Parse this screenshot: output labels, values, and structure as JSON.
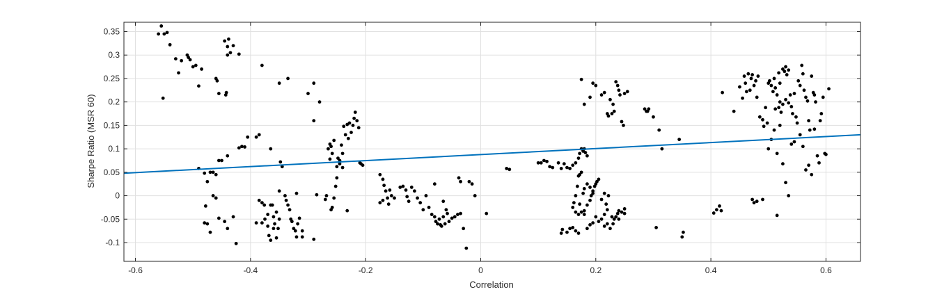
{
  "chart_data": {
    "type": "scatter",
    "title": "",
    "xlabel": "Correlation",
    "ylabel": "Sharpe Ratio (MSR 60)",
    "xlim": [
      -0.62,
      0.66
    ],
    "ylim": [
      -0.14,
      0.37
    ],
    "xticks": [
      -0.6,
      -0.4,
      -0.2,
      0,
      0.2,
      0.4,
      0.6
    ],
    "xtick_labels": [
      "-0.6",
      "-0.4",
      "-0.2",
      "0",
      "0.2",
      "0.4",
      "0.6"
    ],
    "yticks": [
      -0.1,
      -0.05,
      0,
      0.05,
      0.1,
      0.15,
      0.2,
      0.25,
      0.3,
      0.35
    ],
    "ytick_labels": [
      "-0.1",
      "-0.05",
      "0",
      "0.05",
      "0.1",
      "0.15",
      "0.2",
      "0.25",
      "0.3",
      "0.35"
    ],
    "grid": true,
    "colors": {
      "points": "#000000",
      "fit_line": "#0072BD",
      "grid": "#e0e0e0",
      "axes": "#262626"
    },
    "fit_line": {
      "x": [
        -0.62,
        0.66
      ],
      "y": [
        0.048,
        0.13
      ]
    },
    "points": [
      [
        -0.56,
        0.345
      ],
      [
        -0.555,
        0.362
      ],
      [
        -0.55,
        0.345
      ],
      [
        -0.545,
        0.348
      ],
      [
        -0.54,
        0.322
      ],
      [
        -0.552,
        0.208
      ],
      [
        -0.53,
        0.292
      ],
      [
        -0.525,
        0.262
      ],
      [
        -0.52,
        0.288
      ],
      [
        -0.51,
        0.3
      ],
      [
        -0.508,
        0.295
      ],
      [
        -0.505,
        0.29
      ],
      [
        -0.5,
        0.275
      ],
      [
        -0.495,
        0.278
      ],
      [
        -0.49,
        0.234
      ],
      [
        -0.485,
        0.27
      ],
      [
        -0.46,
        0.25
      ],
      [
        -0.458,
        0.245
      ],
      [
        -0.455,
        0.218
      ],
      [
        -0.445,
        0.33
      ],
      [
        -0.44,
        0.318
      ],
      [
        -0.438,
        0.334
      ],
      [
        -0.435,
        0.305
      ],
      [
        -0.44,
        0.3
      ],
      [
        -0.43,
        0.32
      ],
      [
        -0.443,
        0.215
      ],
      [
        -0.442,
        0.22
      ],
      [
        -0.42,
        0.302
      ],
      [
        -0.49,
        0.058
      ],
      [
        -0.48,
        0.048
      ],
      [
        -0.47,
        0.05
      ],
      [
        -0.465,
        0.05
      ],
      [
        -0.46,
        0.045
      ],
      [
        -0.475,
        0.03
      ],
      [
        -0.478,
        -0.022
      ],
      [
        -0.465,
        0.0
      ],
      [
        -0.46,
        -0.005
      ],
      [
        -0.455,
        -0.048
      ],
      [
        -0.48,
        -0.058
      ],
      [
        -0.475,
        -0.06
      ],
      [
        -0.47,
        -0.078
      ],
      [
        -0.455,
        0.075
      ],
      [
        -0.45,
        0.075
      ],
      [
        -0.44,
        0.085
      ],
      [
        -0.445,
        -0.055
      ],
      [
        -0.44,
        -0.07
      ],
      [
        -0.43,
        -0.045
      ],
      [
        -0.425,
        -0.102
      ],
      [
        -0.42,
        0.102
      ],
      [
        -0.415,
        0.105
      ],
      [
        -0.41,
        0.104
      ],
      [
        -0.405,
        0.125
      ],
      [
        -0.39,
        0.125
      ],
      [
        -0.385,
        0.13
      ],
      [
        -0.38,
        0.278
      ],
      [
        -0.365,
        0.1
      ],
      [
        -0.39,
        -0.058
      ],
      [
        -0.385,
        -0.01
      ],
      [
        -0.38,
        -0.015
      ],
      [
        -0.375,
        -0.05
      ],
      [
        -0.37,
        -0.065
      ],
      [
        -0.368,
        -0.085
      ],
      [
        -0.365,
        -0.095
      ],
      [
        -0.36,
        -0.045
      ],
      [
        -0.358,
        -0.06
      ],
      [
        -0.355,
        -0.09
      ],
      [
        -0.35,
        0.01
      ],
      [
        -0.348,
        0.072
      ],
      [
        -0.345,
        0.062
      ],
      [
        -0.34,
        0.0
      ],
      [
        -0.338,
        -0.01
      ],
      [
        -0.335,
        -0.02
      ],
      [
        -0.332,
        -0.03
      ],
      [
        -0.33,
        -0.05
      ],
      [
        -0.328,
        -0.055
      ],
      [
        -0.325,
        -0.07
      ],
      [
        -0.322,
        -0.075
      ],
      [
        -0.32,
        -0.088
      ],
      [
        -0.318,
        -0.06
      ],
      [
        -0.315,
        -0.048
      ],
      [
        -0.35,
        -0.05
      ],
      [
        -0.352,
        -0.07
      ],
      [
        -0.355,
        -0.035
      ],
      [
        -0.36,
        -0.07
      ],
      [
        -0.362,
        -0.02
      ],
      [
        -0.37,
        -0.04
      ],
      [
        -0.376,
        -0.02
      ],
      [
        -0.38,
        -0.058
      ],
      [
        -0.365,
        -0.02
      ],
      [
        -0.31,
        -0.075
      ],
      [
        -0.31,
        -0.088
      ],
      [
        -0.32,
        0.005
      ],
      [
        -0.35,
        0.24
      ],
      [
        -0.335,
        0.25
      ],
      [
        -0.3,
        0.218
      ],
      [
        -0.29,
        0.24
      ],
      [
        -0.28,
        0.2
      ],
      [
        -0.29,
        0.16
      ],
      [
        -0.29,
        -0.093
      ],
      [
        -0.285,
        0.002
      ],
      [
        -0.27,
        -0.008
      ],
      [
        -0.268,
        0.0
      ],
      [
        -0.265,
        0.1
      ],
      [
        -0.262,
        0.11
      ],
      [
        -0.26,
        0.105
      ],
      [
        -0.258,
        0.09
      ],
      [
        -0.255,
        0.118
      ],
      [
        -0.25,
        0.062
      ],
      [
        -0.248,
        0.08
      ],
      [
        -0.245,
        0.075
      ],
      [
        -0.242,
        0.108
      ],
      [
        -0.24,
        0.09
      ],
      [
        -0.238,
        0.148
      ],
      [
        -0.235,
        0.13
      ],
      [
        -0.232,
        0.152
      ],
      [
        -0.23,
        0.122
      ],
      [
        -0.228,
        0.155
      ],
      [
        -0.225,
        0.135
      ],
      [
        -0.222,
        0.15
      ],
      [
        -0.22,
        0.165
      ],
      [
        -0.218,
        0.178
      ],
      [
        -0.215,
        0.16
      ],
      [
        -0.212,
        0.145
      ],
      [
        -0.21,
        0.07
      ],
      [
        -0.208,
        0.068
      ],
      [
        -0.205,
        0.065
      ],
      [
        -0.25,
        0.038
      ],
      [
        -0.252,
        0.02
      ],
      [
        -0.255,
        -0.005
      ],
      [
        -0.258,
        -0.025
      ],
      [
        -0.26,
        -0.03
      ],
      [
        -0.262,
        0.078
      ],
      [
        -0.245,
        0.068
      ],
      [
        -0.24,
        0.06
      ],
      [
        -0.232,
        -0.032
      ],
      [
        -0.175,
        0.045
      ],
      [
        -0.17,
        0.035
      ],
      [
        -0.168,
        0.022
      ],
      [
        -0.165,
        0.01
      ],
      [
        -0.162,
        -0.005
      ],
      [
        -0.16,
        -0.018
      ],
      [
        -0.158,
        0.012
      ],
      [
        -0.17,
        -0.01
      ],
      [
        -0.175,
        -0.015
      ],
      [
        -0.155,
        0.0
      ],
      [
        -0.15,
        -0.005
      ],
      [
        -0.14,
        0.018
      ],
      [
        -0.135,
        0.02
      ],
      [
        -0.13,
        0.012
      ],
      [
        -0.128,
        -0.002
      ],
      [
        -0.125,
        -0.012
      ],
      [
        -0.12,
        0.018
      ],
      [
        -0.115,
        0.01
      ],
      [
        -0.11,
        -0.005
      ],
      [
        -0.105,
        -0.015
      ],
      [
        -0.1,
        -0.03
      ],
      [
        -0.095,
        0.0
      ],
      [
        -0.09,
        -0.025
      ],
      [
        -0.085,
        -0.04
      ],
      [
        -0.08,
        -0.045
      ],
      [
        -0.078,
        -0.055
      ],
      [
        -0.075,
        -0.06
      ],
      [
        -0.072,
        -0.05
      ],
      [
        -0.07,
        -0.062
      ],
      [
        -0.068,
        -0.065
      ],
      [
        -0.065,
        -0.045
      ],
      [
        -0.062,
        -0.06
      ],
      [
        -0.06,
        -0.03
      ],
      [
        -0.058,
        -0.038
      ],
      [
        -0.055,
        -0.055
      ],
      [
        -0.05,
        -0.048
      ],
      [
        -0.045,
        -0.045
      ],
      [
        -0.04,
        -0.04
      ],
      [
        -0.035,
        -0.038
      ],
      [
        -0.03,
        -0.07
      ],
      [
        -0.025,
        -0.112
      ],
      [
        -0.02,
        0.03
      ],
      [
        -0.015,
        0.025
      ],
      [
        -0.01,
        0.0
      ],
      [
        -0.08,
        0.025
      ],
      [
        -0.065,
        -0.012
      ],
      [
        -0.038,
        0.038
      ],
      [
        -0.035,
        0.03
      ],
      [
        0.01,
        -0.038
      ],
      [
        0.045,
        0.058
      ],
      [
        0.05,
        0.056
      ],
      [
        0.1,
        0.07
      ],
      [
        0.105,
        0.07
      ],
      [
        0.11,
        0.075
      ],
      [
        0.115,
        0.073
      ],
      [
        0.12,
        0.062
      ],
      [
        0.125,
        0.06
      ],
      [
        0.135,
        0.07
      ],
      [
        0.14,
        0.058
      ],
      [
        0.145,
        0.068
      ],
      [
        0.15,
        0.06
      ],
      [
        0.155,
        0.058
      ],
      [
        0.16,
        0.065
      ],
      [
        0.165,
        0.07
      ],
      [
        0.17,
        0.08
      ],
      [
        0.172,
        0.09
      ],
      [
        0.175,
        0.1
      ],
      [
        0.178,
        0.095
      ],
      [
        0.18,
        0.1
      ],
      [
        0.182,
        0.092
      ],
      [
        0.185,
        0.085
      ],
      [
        0.175,
        0.05
      ],
      [
        0.172,
        0.045
      ],
      [
        0.17,
        0.042
      ],
      [
        0.168,
        0.02
      ],
      [
        0.165,
        0.0
      ],
      [
        0.162,
        -0.015
      ],
      [
        0.16,
        -0.025
      ],
      [
        0.165,
        -0.035
      ],
      [
        0.17,
        -0.04
      ],
      [
        0.175,
        -0.035
      ],
      [
        0.18,
        -0.032
      ],
      [
        0.185,
        -0.02
      ],
      [
        0.19,
        -0.01
      ],
      [
        0.192,
        0.0
      ],
      [
        0.195,
        0.01
      ],
      [
        0.198,
        0.02
      ],
      [
        0.2,
        0.025
      ],
      [
        0.202,
        0.03
      ],
      [
        0.205,
        0.035
      ],
      [
        0.19,
        0.018
      ],
      [
        0.185,
        0.025
      ],
      [
        0.18,
        0.015
      ],
      [
        0.178,
        0.005
      ],
      [
        0.2,
        -0.045
      ],
      [
        0.205,
        -0.055
      ],
      [
        0.21,
        -0.05
      ],
      [
        0.215,
        -0.065
      ],
      [
        0.22,
        -0.06
      ],
      [
        0.225,
        -0.07
      ],
      [
        0.23,
        -0.06
      ],
      [
        0.232,
        -0.05
      ],
      [
        0.235,
        -0.045
      ],
      [
        0.238,
        -0.038
      ],
      [
        0.24,
        -0.032
      ],
      [
        0.245,
        -0.035
      ],
      [
        0.25,
        -0.028
      ],
      [
        0.21,
        -0.008
      ],
      [
        0.215,
        0.005
      ],
      [
        0.218,
        -0.018
      ],
      [
        0.222,
        0.0
      ],
      [
        0.195,
        -0.058
      ],
      [
        0.19,
        -0.062
      ],
      [
        0.185,
        -0.07
      ],
      [
        0.17,
        -0.08
      ],
      [
        0.165,
        -0.075
      ],
      [
        0.16,
        -0.068
      ],
      [
        0.155,
        -0.07
      ],
      [
        0.15,
        -0.078
      ],
      [
        0.14,
        -0.08
      ],
      [
        0.142,
        -0.072
      ],
      [
        0.18,
        -0.04
      ],
      [
        0.172,
        -0.018
      ],
      [
        0.195,
        0.005
      ],
      [
        0.215,
        -0.04
      ],
      [
        0.22,
        -0.03
      ],
      [
        0.228,
        -0.045
      ],
      [
        0.24,
        -0.05
      ],
      [
        0.25,
        -0.038
      ],
      [
        0.175,
        0.248
      ],
      [
        0.18,
        0.195
      ],
      [
        0.19,
        0.21
      ],
      [
        0.195,
        0.24
      ],
      [
        0.2,
        0.235
      ],
      [
        0.21,
        0.215
      ],
      [
        0.215,
        0.22
      ],
      [
        0.22,
        0.175
      ],
      [
        0.222,
        0.17
      ],
      [
        0.225,
        0.205
      ],
      [
        0.228,
        0.175
      ],
      [
        0.23,
        0.195
      ],
      [
        0.232,
        0.18
      ],
      [
        0.235,
        0.243
      ],
      [
        0.238,
        0.235
      ],
      [
        0.24,
        0.225
      ],
      [
        0.242,
        0.215
      ],
      [
        0.245,
        0.158
      ],
      [
        0.248,
        0.15
      ],
      [
        0.25,
        0.218
      ],
      [
        0.255,
        0.222
      ],
      [
        0.285,
        0.185
      ],
      [
        0.288,
        0.18
      ],
      [
        0.29,
        0.18
      ],
      [
        0.292,
        0.185
      ],
      [
        0.3,
        0.168
      ],
      [
        0.31,
        0.14
      ],
      [
        0.315,
        0.1
      ],
      [
        0.305,
        -0.068
      ],
      [
        0.345,
        0.12
      ],
      [
        0.35,
        -0.088
      ],
      [
        0.352,
        -0.078
      ],
      [
        0.405,
        -0.037
      ],
      [
        0.41,
        -0.03
      ],
      [
        0.415,
        -0.022
      ],
      [
        0.418,
        -0.032
      ],
      [
        0.42,
        0.22
      ],
      [
        0.44,
        0.18
      ],
      [
        0.45,
        0.232
      ],
      [
        0.455,
        0.208
      ],
      [
        0.458,
        0.255
      ],
      [
        0.46,
        0.24
      ],
      [
        0.462,
        0.222
      ],
      [
        0.465,
        0.26
      ],
      [
        0.468,
        0.225
      ],
      [
        0.47,
        0.25
      ],
      [
        0.472,
        0.258
      ],
      [
        0.475,
        0.235
      ],
      [
        0.478,
        0.245
      ],
      [
        0.48,
        0.21
      ],
      [
        0.482,
        0.255
      ],
      [
        0.485,
        0.168
      ],
      [
        0.49,
        0.162
      ],
      [
        0.492,
        0.148
      ],
      [
        0.495,
        0.188
      ],
      [
        0.498,
        0.155
      ],
      [
        0.5,
        0.24
      ],
      [
        0.502,
        0.245
      ],
      [
        0.505,
        0.235
      ],
      [
        0.508,
        0.222
      ],
      [
        0.51,
        0.25
      ],
      [
        0.512,
        0.23
      ],
      [
        0.515,
        0.215
      ],
      [
        0.518,
        0.262
      ],
      [
        0.52,
        0.2
      ],
      [
        0.522,
        0.178
      ],
      [
        0.525,
        0.27
      ],
      [
        0.528,
        0.265
      ],
      [
        0.53,
        0.275
      ],
      [
        0.532,
        0.258
      ],
      [
        0.535,
        0.268
      ],
      [
        0.538,
        0.215
      ],
      [
        0.54,
        0.19
      ],
      [
        0.542,
        0.175
      ],
      [
        0.545,
        0.218
      ],
      [
        0.548,
        0.168
      ],
      [
        0.55,
        0.155
      ],
      [
        0.552,
        0.245
      ],
      [
        0.555,
        0.235
      ],
      [
        0.558,
        0.278
      ],
      [
        0.56,
        0.26
      ],
      [
        0.562,
        0.225
      ],
      [
        0.565,
        0.21
      ],
      [
        0.568,
        0.202
      ],
      [
        0.57,
        0.16
      ],
      [
        0.572,
        0.14
      ],
      [
        0.575,
        0.255
      ],
      [
        0.578,
        0.22
      ],
      [
        0.58,
        0.215
      ],
      [
        0.582,
        0.2
      ],
      [
        0.585,
        0.085
      ],
      [
        0.588,
        0.07
      ],
      [
        0.59,
        0.16
      ],
      [
        0.592,
        0.175
      ],
      [
        0.595,
        0.21
      ],
      [
        0.598,
        0.09
      ],
      [
        0.6,
        0.088
      ],
      [
        0.605,
        0.228
      ],
      [
        0.5,
        0.1
      ],
      [
        0.505,
        0.12
      ],
      [
        0.51,
        0.14
      ],
      [
        0.515,
        0.09
      ],
      [
        0.52,
        0.15
      ],
      [
        0.525,
        0.068
      ],
      [
        0.53,
        0.028
      ],
      [
        0.535,
        0.0
      ],
      [
        0.54,
        0.11
      ],
      [
        0.545,
        0.115
      ],
      [
        0.555,
        0.13
      ],
      [
        0.56,
        0.105
      ],
      [
        0.565,
        0.055
      ],
      [
        0.57,
        0.065
      ],
      [
        0.575,
        0.045
      ],
      [
        0.58,
        0.142
      ],
      [
        0.472,
        -0.008
      ],
      [
        0.475,
        -0.015
      ],
      [
        0.48,
        -0.012
      ],
      [
        0.49,
        -0.008
      ],
      [
        0.515,
        -0.042
      ],
      [
        0.512,
        0.185
      ],
      [
        0.518,
        0.188
      ],
      [
        0.52,
        0.24
      ],
      [
        0.525,
        0.195
      ],
      [
        0.53,
        0.205
      ],
      [
        0.535,
        0.198
      ]
    ]
  }
}
